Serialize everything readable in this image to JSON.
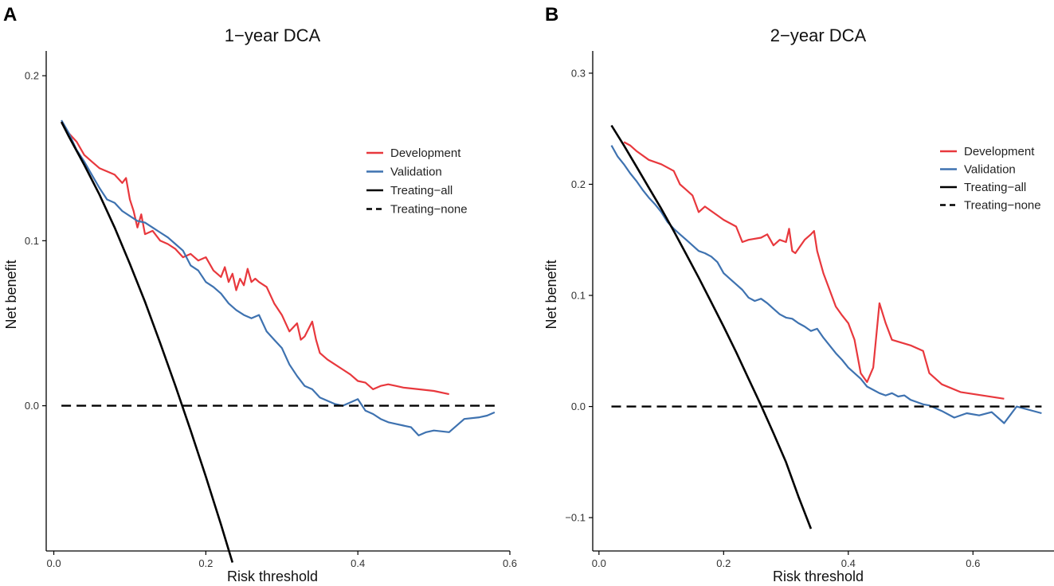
{
  "chart_data": [
    {
      "panel": "A",
      "type": "line",
      "title": "1−year DCA",
      "xlabel": "Risk threshold",
      "ylabel": "Net benefit",
      "xlim": [
        -0.01,
        0.6
      ],
      "ylim": [
        -0.088,
        0.215
      ],
      "xticks": [
        0.0,
        0.2,
        0.4,
        0.6
      ],
      "xtick_labels": [
        "0.0",
        "0.2",
        "0.4",
        "0.6"
      ],
      "yticks": [
        0.0,
        0.1,
        0.2
      ],
      "ytick_labels": [
        "0.0",
        "0.1",
        "0.2"
      ],
      "legend_position": "top-right",
      "series": [
        {
          "name": "Development",
          "color": "#e8383d",
          "dash": "solid",
          "x": [
            0.01,
            0.02,
            0.03,
            0.04,
            0.05,
            0.06,
            0.07,
            0.08,
            0.09,
            0.095,
            0.1,
            0.105,
            0.11,
            0.115,
            0.12,
            0.13,
            0.14,
            0.15,
            0.16,
            0.17,
            0.18,
            0.19,
            0.2,
            0.21,
            0.22,
            0.225,
            0.23,
            0.235,
            0.24,
            0.245,
            0.25,
            0.255,
            0.26,
            0.265,
            0.27,
            0.28,
            0.29,
            0.3,
            0.31,
            0.32,
            0.325,
            0.33,
            0.34,
            0.345,
            0.35,
            0.36,
            0.37,
            0.38,
            0.39,
            0.4,
            0.41,
            0.42,
            0.43,
            0.44,
            0.45,
            0.46,
            0.48,
            0.5,
            0.52
          ],
          "y": [
            0.172,
            0.165,
            0.16,
            0.152,
            0.148,
            0.144,
            0.142,
            0.14,
            0.135,
            0.138,
            0.125,
            0.118,
            0.108,
            0.116,
            0.104,
            0.106,
            0.1,
            0.098,
            0.095,
            0.09,
            0.092,
            0.088,
            0.09,
            0.082,
            0.078,
            0.084,
            0.075,
            0.08,
            0.07,
            0.077,
            0.073,
            0.083,
            0.075,
            0.077,
            0.075,
            0.072,
            0.062,
            0.055,
            0.045,
            0.05,
            0.04,
            0.042,
            0.051,
            0.04,
            0.032,
            0.028,
            0.025,
            0.022,
            0.019,
            0.015,
            0.014,
            0.01,
            0.012,
            0.013,
            0.012,
            0.011,
            0.01,
            0.009,
            0.007
          ]
        },
        {
          "name": "Validation",
          "color": "#3e72b0",
          "dash": "solid",
          "x": [
            0.01,
            0.02,
            0.03,
            0.04,
            0.05,
            0.06,
            0.07,
            0.08,
            0.09,
            0.1,
            0.11,
            0.12,
            0.13,
            0.14,
            0.15,
            0.16,
            0.17,
            0.18,
            0.19,
            0.2,
            0.21,
            0.22,
            0.23,
            0.24,
            0.25,
            0.26,
            0.27,
            0.28,
            0.29,
            0.3,
            0.31,
            0.32,
            0.33,
            0.34,
            0.35,
            0.36,
            0.37,
            0.38,
            0.39,
            0.4,
            0.41,
            0.42,
            0.43,
            0.44,
            0.45,
            0.46,
            0.47,
            0.48,
            0.49,
            0.5,
            0.52,
            0.54,
            0.56,
            0.57,
            0.58
          ],
          "y": [
            0.173,
            0.165,
            0.155,
            0.148,
            0.14,
            0.132,
            0.125,
            0.123,
            0.118,
            0.115,
            0.112,
            0.111,
            0.108,
            0.105,
            0.102,
            0.098,
            0.094,
            0.085,
            0.082,
            0.075,
            0.072,
            0.068,
            0.062,
            0.058,
            0.055,
            0.053,
            0.055,
            0.045,
            0.04,
            0.035,
            0.025,
            0.018,
            0.012,
            0.01,
            0.005,
            0.003,
            0.001,
            0.0,
            0.002,
            0.004,
            -0.003,
            -0.005,
            -0.008,
            -0.01,
            -0.011,
            -0.012,
            -0.013,
            -0.018,
            -0.016,
            -0.015,
            -0.016,
            -0.008,
            -0.007,
            -0.006,
            -0.004
          ]
        },
        {
          "name": "Treating−all",
          "color": "#000000",
          "dash": "solid",
          "x": [
            0.01,
            0.02,
            0.04,
            0.06,
            0.08,
            0.1,
            0.12,
            0.14,
            0.16,
            0.18,
            0.2,
            0.22,
            0.235
          ],
          "y": [
            0.172,
            0.163,
            0.146,
            0.128,
            0.108,
            0.086,
            0.063,
            0.038,
            0.012,
            -0.015,
            -0.043,
            -0.072,
            -0.095
          ]
        },
        {
          "name": "Treating−none",
          "color": "#000000",
          "dash": "dashed",
          "x": [
            0.01,
            0.58
          ],
          "y": [
            0.0,
            0.0
          ]
        }
      ]
    },
    {
      "panel": "B",
      "type": "line",
      "title": "2−year DCA",
      "xlabel": "Risk threshold",
      "ylabel": "Net benefit",
      "xlim": [
        -0.01,
        0.73
      ],
      "ylim": [
        -0.13,
        0.32
      ],
      "xticks": [
        0.0,
        0.2,
        0.4,
        0.6
      ],
      "xtick_labels": [
        "0.0",
        "0.2",
        "0.4",
        "0.6"
      ],
      "yticks": [
        -0.1,
        0.0,
        0.1,
        0.2,
        0.3
      ],
      "ytick_labels": [
        "−0.1",
        "0.0",
        "0.1",
        "0.2",
        "0.3"
      ],
      "legend_position": "top-right",
      "series": [
        {
          "name": "Development",
          "color": "#e8383d",
          "dash": "solid",
          "x": [
            0.04,
            0.05,
            0.06,
            0.08,
            0.1,
            0.12,
            0.13,
            0.14,
            0.15,
            0.16,
            0.17,
            0.18,
            0.19,
            0.2,
            0.22,
            0.23,
            0.24,
            0.26,
            0.27,
            0.28,
            0.29,
            0.3,
            0.305,
            0.31,
            0.315,
            0.32,
            0.33,
            0.34,
            0.345,
            0.35,
            0.36,
            0.37,
            0.38,
            0.39,
            0.4,
            0.41,
            0.42,
            0.43,
            0.44,
            0.45,
            0.46,
            0.47,
            0.5,
            0.52,
            0.53,
            0.55,
            0.58,
            0.65
          ],
          "y": [
            0.238,
            0.235,
            0.23,
            0.222,
            0.218,
            0.212,
            0.2,
            0.195,
            0.19,
            0.175,
            0.18,
            0.176,
            0.172,
            0.168,
            0.162,
            0.148,
            0.15,
            0.152,
            0.155,
            0.145,
            0.15,
            0.148,
            0.16,
            0.14,
            0.138,
            0.142,
            0.15,
            0.155,
            0.158,
            0.14,
            0.12,
            0.105,
            0.09,
            0.082,
            0.075,
            0.06,
            0.03,
            0.022,
            0.035,
            0.093,
            0.075,
            0.06,
            0.055,
            0.05,
            0.03,
            0.02,
            0.013,
            0.007
          ]
        },
        {
          "name": "Validation",
          "color": "#3e72b0",
          "dash": "solid",
          "x": [
            0.02,
            0.03,
            0.04,
            0.05,
            0.06,
            0.07,
            0.08,
            0.09,
            0.1,
            0.11,
            0.12,
            0.13,
            0.14,
            0.15,
            0.16,
            0.17,
            0.18,
            0.19,
            0.2,
            0.21,
            0.22,
            0.23,
            0.24,
            0.25,
            0.26,
            0.27,
            0.28,
            0.29,
            0.3,
            0.31,
            0.32,
            0.33,
            0.34,
            0.35,
            0.36,
            0.37,
            0.38,
            0.39,
            0.4,
            0.41,
            0.42,
            0.43,
            0.44,
            0.45,
            0.46,
            0.47,
            0.48,
            0.49,
            0.5,
            0.51,
            0.52,
            0.53,
            0.55,
            0.57,
            0.59,
            0.61,
            0.63,
            0.65,
            0.67,
            0.71
          ],
          "y": [
            0.235,
            0.225,
            0.218,
            0.21,
            0.203,
            0.195,
            0.188,
            0.182,
            0.175,
            0.166,
            0.16,
            0.155,
            0.15,
            0.145,
            0.14,
            0.138,
            0.135,
            0.13,
            0.12,
            0.115,
            0.11,
            0.105,
            0.098,
            0.095,
            0.097,
            0.093,
            0.088,
            0.083,
            0.08,
            0.079,
            0.075,
            0.072,
            0.068,
            0.07,
            0.062,
            0.055,
            0.048,
            0.042,
            0.035,
            0.03,
            0.025,
            0.018,
            0.015,
            0.012,
            0.01,
            0.012,
            0.009,
            0.01,
            0.006,
            0.004,
            0.002,
            0.001,
            -0.004,
            -0.01,
            -0.006,
            -0.008,
            -0.005,
            -0.015,
            0.0,
            -0.006
          ]
        },
        {
          "name": "Treating−all",
          "color": "#000000",
          "dash": "solid",
          "x": [
            0.02,
            0.04,
            0.06,
            0.08,
            0.1,
            0.12,
            0.14,
            0.16,
            0.18,
            0.2,
            0.22,
            0.24,
            0.26,
            0.28,
            0.3,
            0.32,
            0.34
          ],
          "y": [
            0.253,
            0.235,
            0.216,
            0.197,
            0.178,
            0.158,
            0.137,
            0.116,
            0.094,
            0.072,
            0.049,
            0.025,
            0.001,
            -0.024,
            -0.05,
            -0.081,
            -0.11
          ]
        },
        {
          "name": "Treating−none",
          "color": "#000000",
          "dash": "dashed",
          "x": [
            0.02,
            0.71
          ],
          "y": [
            0.0,
            0.0
          ]
        }
      ]
    }
  ]
}
